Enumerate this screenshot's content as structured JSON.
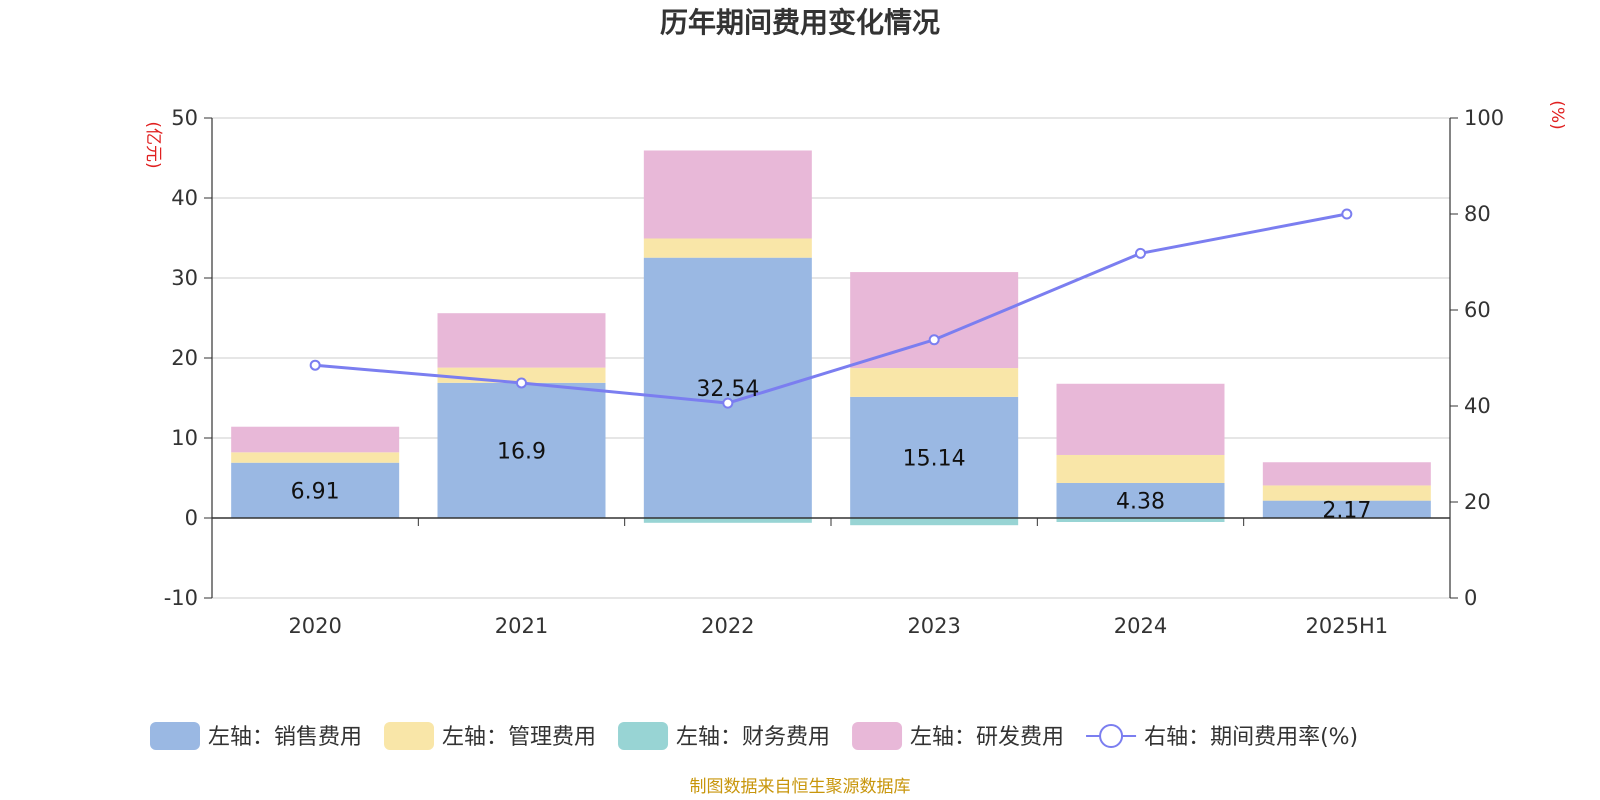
{
  "chart_data": {
    "type": "bar",
    "title": "历年期间费用变化情况",
    "categories": [
      "2020",
      "2021",
      "2022",
      "2023",
      "2024",
      "2025H1"
    ],
    "left_axis": {
      "unit": "(亿元)",
      "ylim": [
        -10,
        50
      ],
      "ticks": [
        "-10",
        "0",
        "10",
        "20",
        "30",
        "40",
        "50"
      ]
    },
    "right_axis": {
      "unit": "(%)",
      "ylim": [
        0,
        100
      ],
      "ticks": [
        "0",
        "20",
        "40",
        "60",
        "80",
        "100"
      ]
    },
    "grid": true,
    "legend_position": "bottom",
    "series": [
      {
        "name": "左轴：销售费用",
        "type": "bar",
        "stack": "left",
        "color": "#9ab8e3",
        "values": [
          6.91,
          16.9,
          32.54,
          15.14,
          4.38,
          2.17
        ],
        "labels": [
          "6.91",
          "16.9",
          "32.54",
          "15.14",
          "4.38",
          "2.17"
        ]
      },
      {
        "name": "左轴：管理费用",
        "type": "bar",
        "stack": "left",
        "color": "#f9e6a8",
        "values": [
          1.3,
          1.9,
          2.4,
          3.6,
          3.5,
          1.9
        ]
      },
      {
        "name": "左轴：财务费用",
        "type": "bar",
        "stack": "left",
        "color": "#98d4d4",
        "values": [
          0.0,
          0.0,
          -0.6,
          -0.9,
          -0.5,
          0.0
        ]
      },
      {
        "name": "左轴：研发费用",
        "type": "bar",
        "stack": "left",
        "color": "#e8b8d8",
        "values": [
          3.2,
          6.8,
          11.0,
          12.0,
          8.9,
          2.9
        ]
      },
      {
        "name": "右轴：期间费用率(%)",
        "type": "line",
        "axis": "right",
        "color": "#7b7ef0",
        "values": [
          48.5,
          44.8,
          40.6,
          53.8,
          71.8,
          80.0
        ]
      }
    ],
    "source": "制图数据来自恒生聚源数据库"
  }
}
